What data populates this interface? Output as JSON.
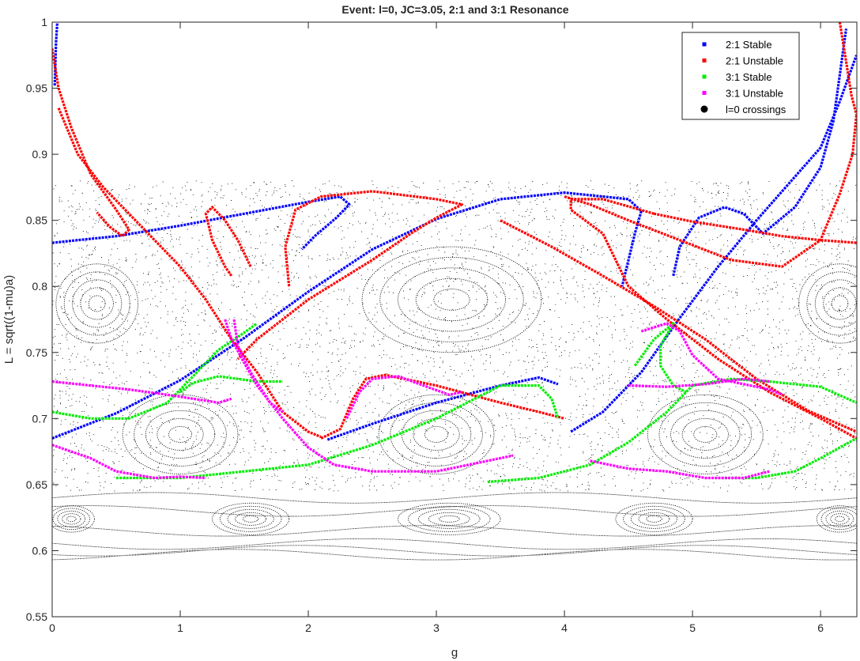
{
  "chart_data": {
    "type": "scatter",
    "title": "Event: l=0, JC=3.05, 2:1 and 3:1 Resonance",
    "xlabel": "g",
    "ylabel": "L = sqrt((1-mu)a)",
    "xlim": [
      0,
      6.2832
    ],
    "ylim": [
      0.55,
      1.0
    ],
    "xticks": [
      "0",
      "1",
      "2",
      "3",
      "4",
      "5",
      "6"
    ],
    "yticks": [
      "0.55",
      "0.6",
      "0.65",
      "0.7",
      "0.75",
      "0.8",
      "0.85",
      "0.9",
      "0.95",
      "1"
    ],
    "grid": false,
    "legend_position": "top-right",
    "series": [
      {
        "name": "2:1 Stable",
        "color": "#0000ff",
        "curves": [
          [
            [
              0,
              0.833
            ],
            [
              0.5,
              0.838
            ],
            [
              1.0,
              0.846
            ],
            [
              1.5,
              0.855
            ],
            [
              2.0,
              0.864
            ],
            [
              2.25,
              0.868
            ],
            [
              2.32,
              0.862
            ],
            [
              2.22,
              0.852
            ],
            [
              2.05,
              0.838
            ],
            [
              1.95,
              0.828
            ]
          ],
          [
            [
              0,
              0.685
            ],
            [
              0.5,
              0.704
            ],
            [
              1.0,
              0.729
            ],
            [
              1.5,
              0.761
            ],
            [
              2.0,
              0.796
            ],
            [
              2.5,
              0.828
            ],
            [
              3.0,
              0.851
            ],
            [
              3.5,
              0.866
            ],
            [
              4.0,
              0.871
            ],
            [
              4.5,
              0.866
            ],
            [
              4.6,
              0.857
            ],
            [
              4.55,
              0.84
            ],
            [
              4.5,
              0.82
            ],
            [
              4.45,
              0.8
            ]
          ],
          [
            [
              2.15,
              0.684
            ],
            [
              2.5,
              0.696
            ],
            [
              3.0,
              0.712
            ],
            [
              3.5,
              0.725
            ],
            [
              3.8,
              0.731
            ],
            [
              3.95,
              0.726
            ]
          ],
          [
            [
              4.05,
              0.69
            ],
            [
              4.3,
              0.705
            ],
            [
              4.6,
              0.735
            ],
            [
              4.9,
              0.776
            ],
            [
              5.2,
              0.815
            ],
            [
              5.5,
              0.85
            ],
            [
              5.8,
              0.883
            ],
            [
              6.0,
              0.905
            ],
            [
              6.15,
              0.94
            ],
            [
              6.28,
              0.975
            ]
          ],
          [
            [
              4.85,
              0.808
            ],
            [
              4.9,
              0.83
            ],
            [
              5.05,
              0.852
            ],
            [
              5.25,
              0.86
            ],
            [
              5.4,
              0.855
            ],
            [
              5.55,
              0.84
            ],
            [
              5.8,
              0.86
            ],
            [
              6.0,
              0.89
            ],
            [
              6.1,
              0.925
            ],
            [
              6.15,
              0.96
            ],
            [
              6.2,
              0.995
            ]
          ],
          [
            [
              0.02,
              0.952
            ],
            [
              0.03,
              0.985
            ],
            [
              0.04,
              1.0
            ]
          ]
        ]
      },
      {
        "name": "2:1 Unstable",
        "color": "#ff0000",
        "curves": [
          [
            [
              0,
              0.98
            ],
            [
              0.05,
              0.95
            ],
            [
              0.15,
              0.92
            ],
            [
              0.3,
              0.885
            ],
            [
              0.5,
              0.858
            ],
            [
              0.6,
              0.843
            ],
            [
              0.55,
              0.838
            ],
            [
              0.45,
              0.845
            ],
            [
              0.35,
              0.856
            ]
          ],
          [
            [
              0.05,
              0.935
            ],
            [
              0.2,
              0.9
            ],
            [
              0.4,
              0.875
            ],
            [
              0.6,
              0.855
            ],
            [
              0.8,
              0.835
            ],
            [
              1.0,
              0.815
            ],
            [
              1.2,
              0.79
            ],
            [
              1.4,
              0.76
            ],
            [
              1.6,
              0.735
            ],
            [
              1.8,
              0.705
            ],
            [
              2.0,
              0.69
            ],
            [
              2.1,
              0.686
            ]
          ],
          [
            [
              1.55,
              0.815
            ],
            [
              1.45,
              0.835
            ],
            [
              1.35,
              0.85
            ],
            [
              1.25,
              0.86
            ],
            [
              1.2,
              0.855
            ],
            [
              1.25,
              0.835
            ],
            [
              1.35,
              0.815
            ],
            [
              1.4,
              0.808
            ]
          ],
          [
            [
              1.85,
              0.8
            ],
            [
              1.82,
              0.83
            ],
            [
              1.9,
              0.858
            ],
            [
              2.1,
              0.868
            ],
            [
              2.5,
              0.872
            ],
            [
              3.0,
              0.866
            ],
            [
              3.2,
              0.862
            ],
            [
              3.0,
              0.852
            ],
            [
              2.8,
              0.84
            ],
            [
              2.5,
              0.82
            ],
            [
              2.0,
              0.79
            ],
            [
              1.6,
              0.76
            ],
            [
              1.45,
              0.745
            ]
          ],
          [
            [
              2.1,
              0.685
            ],
            [
              2.25,
              0.692
            ],
            [
              2.35,
              0.715
            ],
            [
              2.45,
              0.73
            ],
            [
              2.6,
              0.733
            ],
            [
              3.0,
              0.725
            ],
            [
              3.5,
              0.712
            ],
            [
              3.8,
              0.705
            ],
            [
              4.0,
              0.7
            ]
          ],
          [
            [
              4.0,
              0.868
            ],
            [
              4.2,
              0.862
            ],
            [
              4.5,
              0.85
            ],
            [
              4.9,
              0.835
            ],
            [
              5.3,
              0.82
            ],
            [
              5.7,
              0.815
            ],
            [
              6.0,
              0.835
            ],
            [
              6.15,
              0.87
            ],
            [
              6.25,
              0.9
            ],
            [
              6.28,
              0.93
            ]
          ],
          [
            [
              4.7,
              0.855
            ],
            [
              4.3,
              0.866
            ],
            [
              4.05,
              0.866
            ],
            [
              4.05,
              0.858
            ],
            [
              4.3,
              0.84
            ],
            [
              4.5,
              0.8
            ],
            [
              4.8,
              0.775
            ],
            [
              5.2,
              0.745
            ],
            [
              5.6,
              0.72
            ],
            [
              6.0,
              0.7
            ],
            [
              6.28,
              0.685
            ]
          ],
          [
            [
              3.5,
              0.85
            ],
            [
              3.9,
              0.83
            ],
            [
              4.3,
              0.808
            ],
            [
              4.7,
              0.785
            ],
            [
              5.1,
              0.76
            ],
            [
              5.5,
              0.73
            ],
            [
              5.9,
              0.706
            ],
            [
              6.28,
              0.69
            ]
          ],
          [
            [
              6.28,
              0.833
            ],
            [
              6.0,
              0.835
            ],
            [
              5.7,
              0.838
            ],
            [
              5.4,
              0.843
            ],
            [
              5.0,
              0.849
            ],
            [
              4.7,
              0.855
            ]
          ],
          [
            [
              6.15,
              1.0
            ],
            [
              6.2,
              0.97
            ],
            [
              6.24,
              0.945
            ],
            [
              6.28,
              0.93
            ]
          ]
        ]
      },
      {
        "name": "3:1 Stable",
        "color": "#00ee00",
        "curves": [
          [
            [
              0,
              0.705
            ],
            [
              0.3,
              0.7
            ],
            [
              0.6,
              0.7
            ],
            [
              0.9,
              0.712
            ],
            [
              1.1,
              0.732
            ],
            [
              1.3,
              0.752
            ],
            [
              1.5,
              0.765
            ],
            [
              1.6,
              0.772
            ]
          ],
          [
            [
              1.0,
              0.72
            ],
            [
              1.1,
              0.727
            ],
            [
              1.3,
              0.732
            ],
            [
              1.6,
              0.728
            ],
            [
              1.8,
              0.728
            ]
          ],
          [
            [
              0.5,
              0.655
            ],
            [
              1.0,
              0.655
            ],
            [
              1.5,
              0.66
            ],
            [
              2.0,
              0.665
            ],
            [
              2.5,
              0.68
            ],
            [
              3.0,
              0.7
            ],
            [
              3.3,
              0.715
            ],
            [
              3.5,
              0.725
            ],
            [
              3.8,
              0.725
            ],
            [
              3.9,
              0.715
            ],
            [
              3.95,
              0.7
            ]
          ],
          [
            [
              3.4,
              0.652
            ],
            [
              3.8,
              0.655
            ],
            [
              4.2,
              0.665
            ],
            [
              4.5,
              0.682
            ],
            [
              4.8,
              0.705
            ],
            [
              5.0,
              0.725
            ],
            [
              5.3,
              0.73
            ],
            [
              5.6,
              0.728
            ],
            [
              6.0,
              0.724
            ],
            [
              6.28,
              0.712
            ]
          ],
          [
            [
              4.55,
              0.74
            ],
            [
              4.7,
              0.76
            ],
            [
              4.85,
              0.772
            ],
            [
              4.75,
              0.755
            ],
            [
              4.75,
              0.74
            ],
            [
              4.85,
              0.725
            ],
            [
              4.95,
              0.72
            ]
          ],
          [
            [
              5.2,
              0.655
            ],
            [
              5.5,
              0.655
            ],
            [
              5.8,
              0.66
            ],
            [
              6.0,
              0.67
            ],
            [
              6.28,
              0.685
            ]
          ]
        ]
      },
      {
        "name": "3:1 Unstable",
        "color": "#ff00ff",
        "curves": [
          [
            [
              0,
              0.728
            ],
            [
              0.3,
              0.725
            ],
            [
              0.6,
              0.722
            ],
            [
              0.9,
              0.718
            ],
            [
              1.1,
              0.715
            ],
            [
              1.3,
              0.712
            ],
            [
              1.4,
              0.715
            ]
          ],
          [
            [
              1.35,
              0.775
            ],
            [
              1.4,
              0.76
            ],
            [
              1.5,
              0.742
            ],
            [
              1.6,
              0.725
            ],
            [
              1.8,
              0.7
            ],
            [
              2.0,
              0.678
            ],
            [
              2.2,
              0.665
            ],
            [
              2.5,
              0.66
            ],
            [
              3.0,
              0.66
            ],
            [
              3.3,
              0.666
            ],
            [
              3.6,
              0.672
            ]
          ],
          [
            [
              1.42,
              0.775
            ],
            [
              1.45,
              0.755
            ],
            [
              1.55,
              0.735
            ],
            [
              1.7,
              0.712
            ],
            [
              1.8,
              0.705
            ]
          ],
          [
            [
              0,
              0.68
            ],
            [
              0.3,
              0.67
            ],
            [
              0.5,
              0.66
            ],
            [
              0.8,
              0.655
            ],
            [
              1.0,
              0.656
            ],
            [
              1.2,
              0.655
            ]
          ],
          [
            [
              2.3,
              0.7
            ],
            [
              2.4,
              0.72
            ],
            [
              2.5,
              0.73
            ],
            [
              2.7,
              0.732
            ],
            [
              2.9,
              0.725
            ],
            [
              3.1,
              0.718
            ],
            [
              3.2,
              0.72
            ]
          ],
          [
            [
              4.2,
              0.668
            ],
            [
              4.5,
              0.662
            ],
            [
              4.8,
              0.66
            ],
            [
              5.1,
              0.655
            ],
            [
              5.4,
              0.655
            ],
            [
              5.6,
              0.66
            ]
          ],
          [
            [
              4.6,
              0.766
            ],
            [
              4.8,
              0.772
            ],
            [
              4.9,
              0.766
            ],
            [
              5.0,
              0.748
            ],
            [
              5.2,
              0.73
            ],
            [
              5.5,
              0.724
            ],
            [
              5.6,
              0.722
            ],
            [
              5.7,
              0.718
            ]
          ],
          [
            [
              4.5,
              0.725
            ],
            [
              4.8,
              0.724
            ],
            [
              5.1,
              0.726
            ],
            [
              5.4,
              0.73
            ],
            [
              5.6,
              0.728
            ]
          ]
        ]
      },
      {
        "name": "l=0 crossings",
        "color": "#000000"
      }
    ],
    "islands": [
      {
        "cx": 0.35,
        "cy": 0.787,
        "rx": 0.32,
        "ry": 0.03
      },
      {
        "cx": 3.12,
        "cy": 0.79,
        "rx": 0.7,
        "ry": 0.04
      },
      {
        "cx": 6.15,
        "cy": 0.787,
        "rx": 0.32,
        "ry": 0.03
      },
      {
        "cx": 1.0,
        "cy": 0.688,
        "rx": 0.45,
        "ry": 0.03
      },
      {
        "cx": 3.0,
        "cy": 0.688,
        "rx": 0.45,
        "ry": 0.03
      },
      {
        "cx": 5.1,
        "cy": 0.688,
        "rx": 0.45,
        "ry": 0.03
      },
      {
        "cx": 0.15,
        "cy": 0.624,
        "rx": 0.18,
        "ry": 0.01
      },
      {
        "cx": 1.55,
        "cy": 0.624,
        "rx": 0.3,
        "ry": 0.012
      },
      {
        "cx": 3.1,
        "cy": 0.624,
        "rx": 0.4,
        "ry": 0.012
      },
      {
        "cx": 4.7,
        "cy": 0.624,
        "rx": 0.3,
        "ry": 0.012
      },
      {
        "cx": 6.15,
        "cy": 0.624,
        "rx": 0.18,
        "ry": 0.01
      }
    ]
  }
}
